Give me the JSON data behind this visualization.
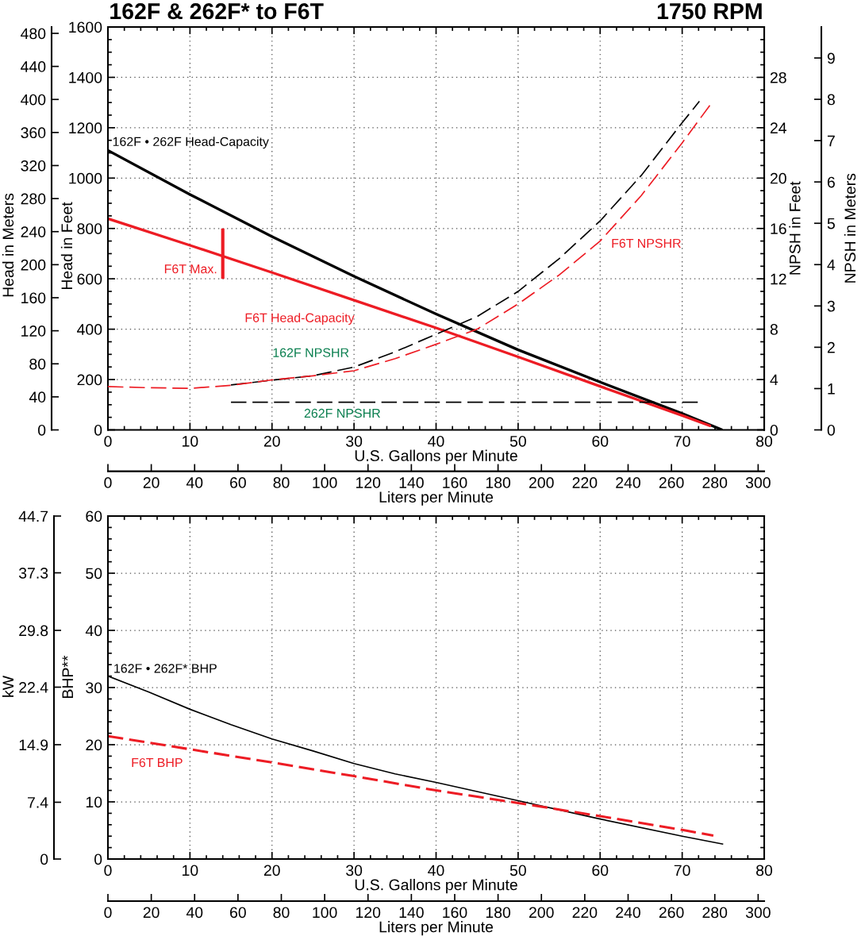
{
  "chart_data": [
    {
      "type": "line",
      "title": "162F & 262F* to F6T",
      "subtitle": "1750 RPM",
      "xlabel": "U.S. Gallons per Minute",
      "x2label": "Liters per Minute",
      "ylabel": "Head in Feet",
      "y2label": "Head in Meters",
      "xlim": [
        0,
        80
      ],
      "xticks": [
        0,
        {
          "value": 2,
          "label": null
        },
        {
          "value": 4,
          "label": null
        },
        {
          "value": 6,
          "label": null
        },
        {
          "value": 8,
          "label": null
        },
        10,
        {
          "value": 12,
          "label": null
        },
        {
          "value": 14,
          "label": null
        },
        {
          "value": 16,
          "label": null
        },
        {
          "value": 18,
          "label": null
        },
        20,
        {
          "value": 22,
          "label": null
        },
        {
          "value": 24,
          "label": null
        },
        {
          "value": 26,
          "label": null
        },
        {
          "value": 28,
          "label": null
        },
        30,
        {
          "value": 32,
          "label": null
        },
        {
          "value": 34,
          "label": null
        },
        {
          "value": 36,
          "label": null
        },
        {
          "value": 38,
          "label": null
        },
        40,
        {
          "value": 42,
          "label": null
        },
        {
          "value": 44,
          "label": null
        },
        {
          "value": 46,
          "label": null
        },
        {
          "value": 48,
          "label": null
        },
        50,
        {
          "value": 52,
          "label": null
        },
        {
          "value": 54,
          "label": null
        },
        {
          "value": 56,
          "label": null
        },
        {
          "value": 58,
          "label": null
        },
        60,
        {
          "value": 62,
          "label": null
        },
        {
          "value": 64,
          "label": null
        },
        {
          "value": 66,
          "label": null
        },
        {
          "value": 68,
          "label": null
        },
        70,
        {
          "value": 72,
          "label": null
        },
        {
          "value": 74,
          "label": null
        },
        {
          "value": 76,
          "label": null
        },
        {
          "value": 78,
          "label": null
        },
        80
      ],
      "x2lim": [
        0,
        302.8
      ],
      "x2ticks": [
        0,
        20,
        40,
        60,
        80,
        100,
        120,
        140,
        160,
        180,
        200,
        220,
        240,
        260,
        280,
        300
      ],
      "ylim": [
        0,
        1600
      ],
      "yticks": [
        0,
        {
          "value": 50,
          "label": null
        },
        {
          "value": 100,
          "label": null
        },
        {
          "value": 150,
          "label": null
        },
        200,
        {
          "value": 250,
          "label": null
        },
        {
          "value": 300,
          "label": null
        },
        {
          "value": 350,
          "label": null
        },
        400,
        {
          "value": 450,
          "label": null
        },
        {
          "value": 500,
          "label": null
        },
        {
          "value": 550,
          "label": null
        },
        600,
        {
          "value": 650,
          "label": null
        },
        {
          "value": 700,
          "label": null
        },
        {
          "value": 750,
          "label": null
        },
        800,
        {
          "value": 850,
          "label": null
        },
        {
          "value": 900,
          "label": null
        },
        {
          "value": 950,
          "label": null
        },
        1000,
        {
          "value": 1050,
          "label": null
        },
        {
          "value": 1100,
          "label": null
        },
        {
          "value": 1150,
          "label": null
        },
        1200,
        {
          "value": 1250,
          "label": null
        },
        {
          "value": 1300,
          "label": null
        },
        {
          "value": 1350,
          "label": null
        },
        1400,
        {
          "value": 1450,
          "label": null
        },
        {
          "value": 1500,
          "label": null
        },
        {
          "value": 1550,
          "label": null
        },
        1600
      ],
      "y2lim": [
        0,
        487.7
      ],
      "y2ticks": [
        0,
        40,
        80,
        120,
        160,
        200,
        240,
        280,
        320,
        360,
        400,
        440,
        480
      ],
      "grid": true,
      "series": [
        {
          "name": "162F • 262F Head-Capacity",
          "color": "#000000",
          "line_style": "solid",
          "x": [
            0,
            10,
            20,
            30,
            40,
            50,
            60,
            70,
            74.9
          ],
          "values": [
            1110,
            935,
            768,
            610,
            460,
            318,
            190,
            65,
            0
          ]
        },
        {
          "name": "F6T Head-Capacity",
          "color": "#ed1c24",
          "line_style": "solid",
          "x": [
            0,
            10,
            20,
            30,
            40,
            50,
            60,
            70,
            73.5
          ],
          "values": [
            839,
            733,
            625,
            515,
            405,
            290,
            173,
            57,
            15
          ]
        },
        {
          "name": "F6T Max.",
          "color": "#ed1c24",
          "line_style": "solid",
          "x": [
            14,
            14
          ],
          "values": [
            600,
            800
          ]
        }
      ]
    },
    {
      "type": "line",
      "ylabel": "NPSH in Feet",
      "y2label": "NPSH in Meters",
      "tick_labels": "y",
      "xlim": [
        0,
        80
      ],
      "ylim": [
        0,
        32
      ],
      "yticks": [
        0,
        {
          "value": 1,
          "label": null
        },
        {
          "value": 2,
          "label": null
        },
        {
          "value": 3,
          "label": null
        },
        4,
        {
          "value": 5,
          "label": null
        },
        {
          "value": 6,
          "label": null
        },
        {
          "value": 7,
          "label": null
        },
        8,
        {
          "value": 9,
          "label": null
        },
        {
          "value": 10,
          "label": null
        },
        {
          "value": 11,
          "label": null
        },
        12,
        {
          "value": 13,
          "label": null
        },
        {
          "value": 14,
          "label": null
        },
        {
          "value": 15,
          "label": null
        },
        16,
        {
          "value": 17,
          "label": null
        },
        {
          "value": 18,
          "label": null
        },
        {
          "value": 19,
          "label": null
        },
        20,
        {
          "value": 21,
          "label": null
        },
        {
          "value": 22,
          "label": null
        },
        {
          "value": 23,
          "label": null
        },
        24,
        {
          "value": 25,
          "label": null
        },
        {
          "value": 26,
          "label": null
        },
        {
          "value": 27,
          "label": null
        },
        28,
        {
          "value": 29,
          "label": null
        },
        {
          "value": 30,
          "label": null
        },
        {
          "value": 31,
          "label": null
        }
      ],
      "y2lim": [
        0,
        9.75
      ],
      "y2ticks": [
        0,
        1,
        2,
        3,
        4,
        5,
        6,
        7,
        8,
        9
      ],
      "series": [
        {
          "name": "162F NPSHR",
          "color": "#000000",
          "line_style": "dashed",
          "x": [
            15,
            20,
            25,
            30,
            35,
            40,
            45,
            50,
            55,
            60,
            65,
            70,
            72.1
          ],
          "values": [
            3.57,
            3.95,
            4.3,
            4.99,
            6.2,
            7.6,
            9.0,
            11.0,
            13.6,
            16.6,
            20.2,
            24.4,
            26.1
          ]
        },
        {
          "name": "262F NPSHR",
          "color": "#000000",
          "line_style": "dashed",
          "x": [
            15,
            72.1
          ],
          "values": [
            2.2,
            2.2
          ]
        },
        {
          "name": "F6T NPSHR",
          "color": "#ed1c24",
          "line_style": "dashed",
          "x": [
            0,
            5,
            10,
            15,
            20,
            25,
            30,
            35,
            40,
            45,
            50,
            55,
            60,
            65,
            70,
            73.4
          ],
          "values": [
            3.44,
            3.35,
            3.3,
            3.54,
            3.97,
            4.3,
            4.7,
            5.66,
            6.8,
            8.0,
            10.0,
            12.3,
            15.0,
            18.6,
            22.8,
            25.8
          ]
        }
      ]
    },
    {
      "type": "line",
      "xlabel": "U.S. Gallons per Minute",
      "x2label": "Liters per Minute",
      "ylabel": "BHP**",
      "y2label": "kW",
      "xlim": [
        0,
        80
      ],
      "xticks": [
        0,
        {
          "value": 2,
          "label": null
        },
        {
          "value": 4,
          "label": null
        },
        {
          "value": 6,
          "label": null
        },
        {
          "value": 8,
          "label": null
        },
        10,
        {
          "value": 12,
          "label": null
        },
        {
          "value": 14,
          "label": null
        },
        {
          "value": 16,
          "label": null
        },
        {
          "value": 18,
          "label": null
        },
        20,
        {
          "value": 22,
          "label": null
        },
        {
          "value": 24,
          "label": null
        },
        {
          "value": 26,
          "label": null
        },
        {
          "value": 28,
          "label": null
        },
        30,
        {
          "value": 32,
          "label": null
        },
        {
          "value": 34,
          "label": null
        },
        {
          "value": 36,
          "label": null
        },
        {
          "value": 38,
          "label": null
        },
        40,
        {
          "value": 42,
          "label": null
        },
        {
          "value": 44,
          "label": null
        },
        {
          "value": 46,
          "label": null
        },
        {
          "value": 48,
          "label": null
        },
        50,
        {
          "value": 52,
          "label": null
        },
        {
          "value": 54,
          "label": null
        },
        {
          "value": 56,
          "label": null
        },
        {
          "value": 58,
          "label": null
        },
        60,
        {
          "value": 62,
          "label": null
        },
        {
          "value": 64,
          "label": null
        },
        {
          "value": 66,
          "label": null
        },
        {
          "value": 68,
          "label": null
        },
        70,
        {
          "value": 72,
          "label": null
        },
        {
          "value": 74,
          "label": null
        },
        {
          "value": 76,
          "label": null
        },
        {
          "value": 78,
          "label": null
        },
        80
      ],
      "x2lim": [
        0,
        302.8
      ],
      "x2ticks": [
        0,
        20,
        40,
        60,
        80,
        100,
        120,
        140,
        160,
        180,
        200,
        220,
        240,
        260,
        280,
        300
      ],
      "ylim": [
        0,
        60
      ],
      "yticks": [
        0,
        {
          "value": 2,
          "label": null
        },
        {
          "value": 4,
          "label": null
        },
        {
          "value": 6,
          "label": null
        },
        {
          "value": 8,
          "label": null
        },
        10,
        {
          "value": 12,
          "label": null
        },
        {
          "value": 14,
          "label": null
        },
        {
          "value": 16,
          "label": null
        },
        {
          "value": 18,
          "label": null
        },
        20,
        {
          "value": 22,
          "label": null
        },
        {
          "value": 24,
          "label": null
        },
        {
          "value": 26,
          "label": null
        },
        {
          "value": 28,
          "label": null
        },
        30,
        {
          "value": 32,
          "label": null
        },
        {
          "value": 34,
          "label": null
        },
        {
          "value": 36,
          "label": null
        },
        {
          "value": 38,
          "label": null
        },
        40,
        {
          "value": 42,
          "label": null
        },
        {
          "value": 44,
          "label": null
        },
        {
          "value": 46,
          "label": null
        },
        {
          "value": 48,
          "label": null
        },
        50,
        {
          "value": 52,
          "label": null
        },
        {
          "value": 54,
          "label": null
        },
        {
          "value": 56,
          "label": null
        },
        {
          "value": 58,
          "label": null
        },
        60
      ],
      "y2lim": [
        0,
        44.7
      ],
      "y2ticks": [
        0,
        7.4,
        14.9,
        22.4,
        29.8,
        37.3,
        44.7
      ],
      "grid": true,
      "series": [
        {
          "name": "162F • 262F* BHP",
          "color": "#000000",
          "line_style": "solid",
          "x": [
            0,
            5,
            10,
            15,
            20,
            25,
            30,
            35,
            40,
            50,
            60,
            70,
            75
          ],
          "values": [
            32.0,
            29.2,
            26.2,
            23.5,
            21.0,
            18.9,
            16.7,
            14.9,
            13.4,
            10.2,
            7.0,
            4.0,
            2.6
          ]
        },
        {
          "name": "F6T BHP",
          "color": "#ed1c24",
          "line_style": "dashed",
          "x": [
            0,
            10,
            20,
            30,
            40,
            50,
            60,
            70,
            73.8
          ],
          "values": [
            21.5,
            19.2,
            16.9,
            14.5,
            12.0,
            9.8,
            7.5,
            5.1,
            4.1
          ]
        }
      ]
    }
  ]
}
